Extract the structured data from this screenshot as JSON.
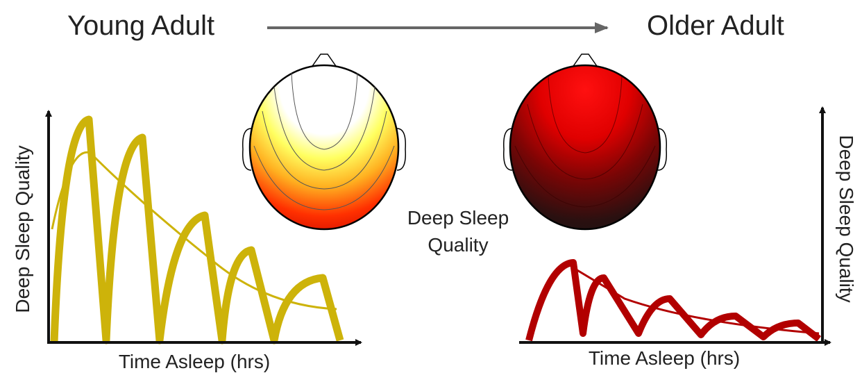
{
  "header": {
    "left_title": "Young Adult",
    "right_title": "Older Adult"
  },
  "center_label": [
    "Deep Sleep",
    "Quality"
  ],
  "panels": [
    {
      "x_label": "Time Asleep (hrs)",
      "y_label": "Deep Sleep Quality"
    },
    {
      "x_label": "Time Asleep (hrs)",
      "y_label": "Deep Sleep Quality"
    }
  ]
}
